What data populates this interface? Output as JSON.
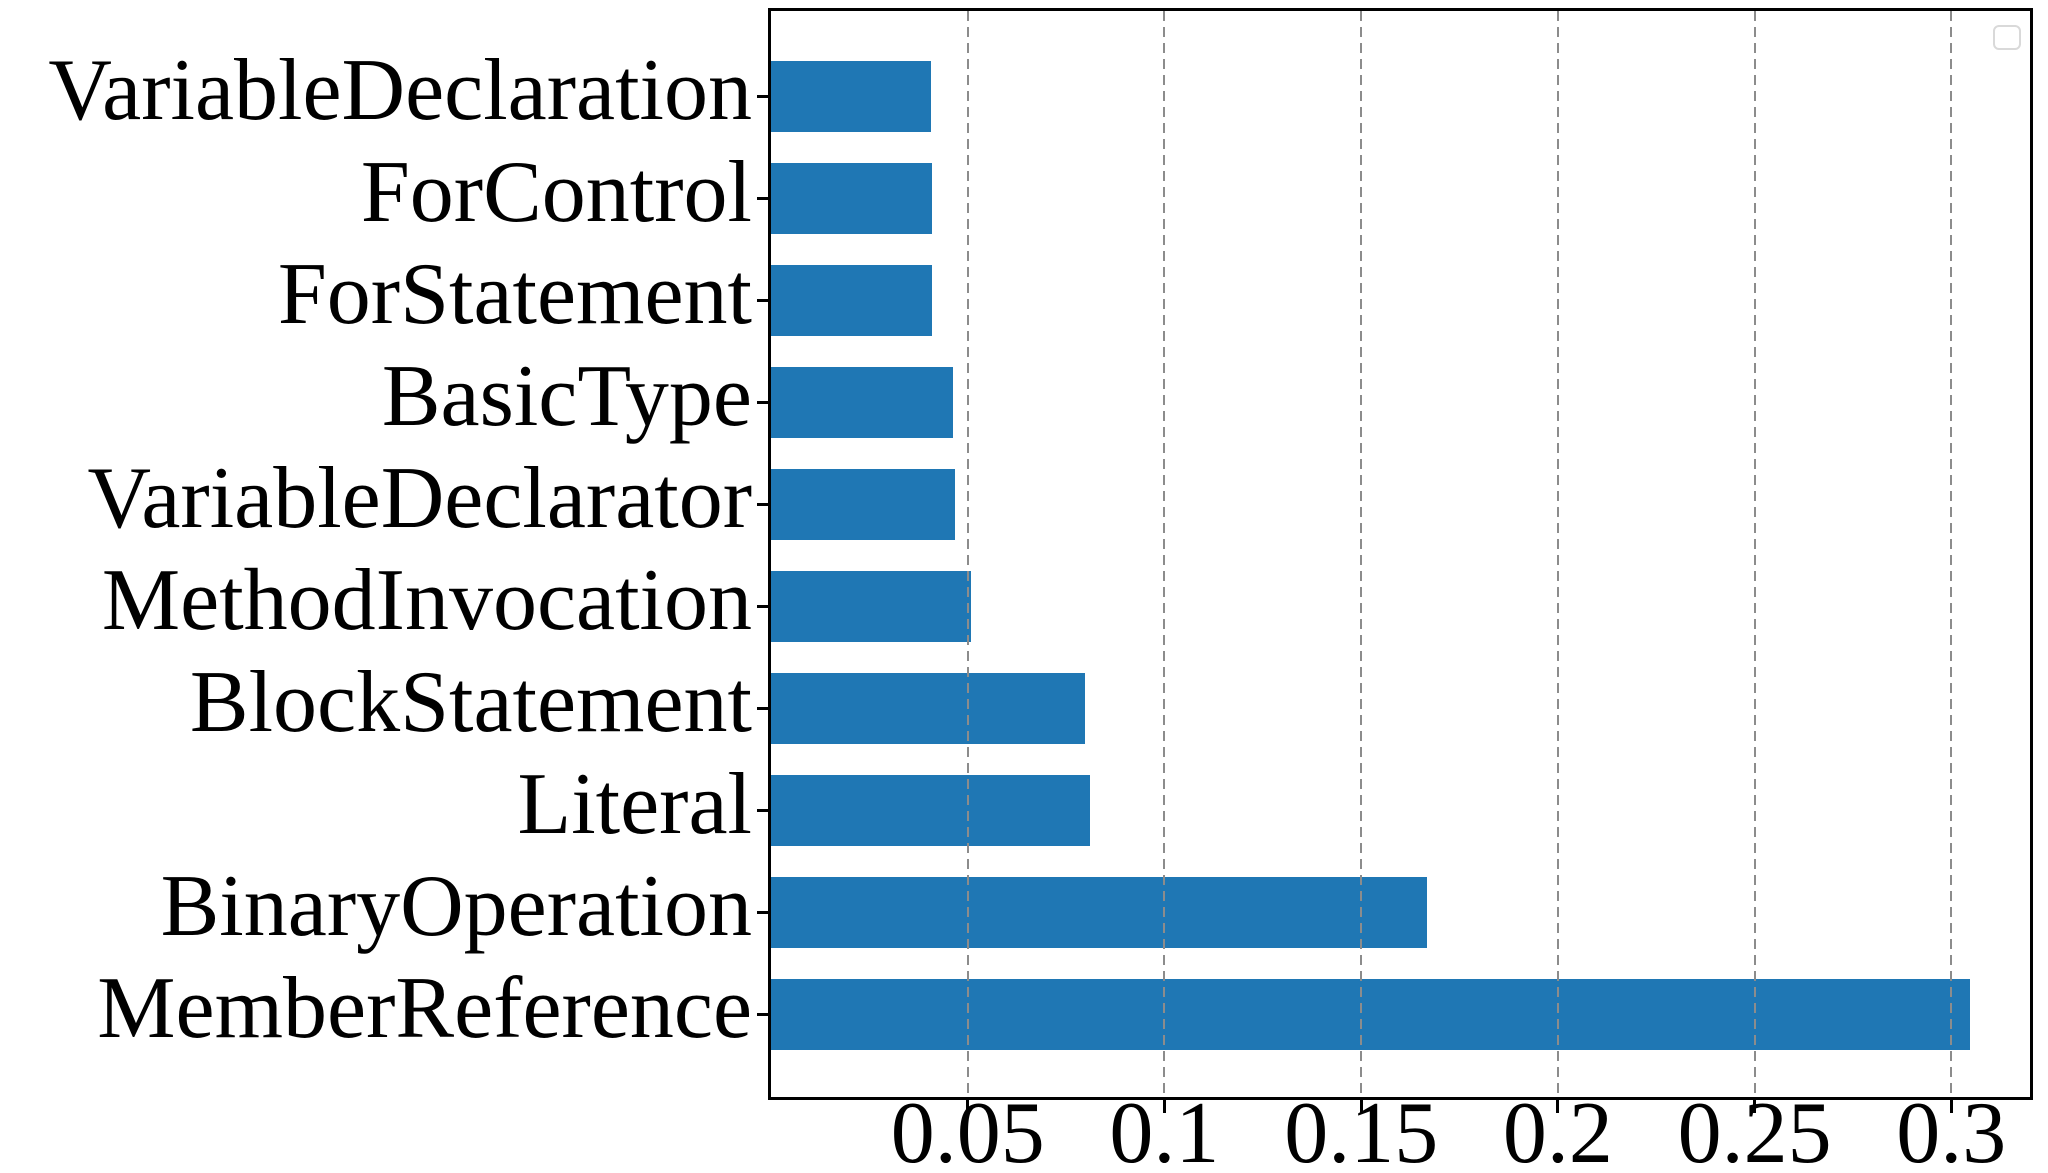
{
  "chart_data": {
    "type": "bar",
    "orientation": "horizontal",
    "title": "",
    "xlabel": "",
    "ylabel": "",
    "categories": [
      "VariableDeclaration",
      "ForControl",
      "ForStatement",
      "BasicType",
      "VariableDeclarator",
      "MethodInvocation",
      "BlockStatement",
      "Literal",
      "BinaryOperation",
      "MemberReference"
    ],
    "values": [
      0.0406,
      0.0408,
      0.0408,
      0.0463,
      0.0468,
      0.0508,
      0.0797,
      0.081,
      0.1667,
      0.3047
    ],
    "xlim": [
      0,
      0.32
    ],
    "xticks": [
      0.05,
      0.1,
      0.15,
      0.2,
      0.25,
      0.3
    ],
    "xtick_labels": [
      "0.05",
      "0.1",
      "0.15",
      "0.2",
      "0.25",
      "0.3"
    ],
    "grid": "vertical-dashed",
    "grid_above_bars": true,
    "legend": {
      "visible": true,
      "entries": []
    },
    "colors": {
      "bar": "#1f77b4",
      "grid": "#8c8c8c",
      "spine": "#000000",
      "legend_border": "#d9d9d9",
      "background": "#ffffff",
      "text": "#000000"
    }
  }
}
